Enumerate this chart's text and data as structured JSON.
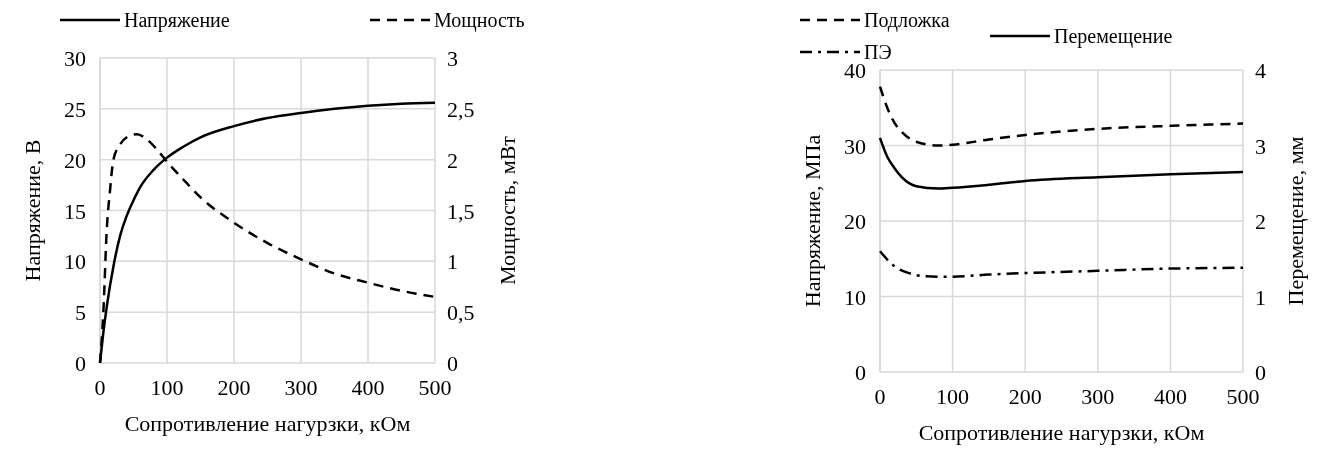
{
  "chart_data": [
    {
      "type": "line",
      "xlabel": "Сопротивление нагурзки, кОм",
      "ylabel": "Напряжение, В",
      "y2label": "Мощность, мВт",
      "xlim": [
        0,
        500
      ],
      "xticks": [
        0,
        100,
        200,
        300,
        400,
        500
      ],
      "ylim": [
        0,
        30
      ],
      "yticks": [
        0,
        5,
        10,
        15,
        20,
        25,
        30
      ],
      "y2lim": [
        0,
        3
      ],
      "y2ticks": [
        0,
        {
          "value": 0.5,
          "label": "0,5"
        },
        1,
        {
          "value": 1.5,
          "label": "1,5"
        },
        2,
        {
          "value": 2.5,
          "label": "2,5"
        },
        3
      ],
      "grid": true,
      "legend": "top",
      "series": [
        {
          "name": "Напряжение",
          "color": "#000000",
          "line_style": "solid",
          "x": [
            0,
            5,
            10,
            20,
            30,
            40,
            50,
            60,
            80,
            100,
            125,
            150,
            200,
            250,
            300,
            350,
            400,
            450,
            500
          ],
          "values": [
            0,
            3,
            5.5,
            9.5,
            12.5,
            14.5,
            16,
            17.3,
            19,
            20.2,
            21.3,
            22.2,
            23.3,
            24.1,
            24.6,
            25,
            25.3,
            25.5,
            25.6
          ]
        },
        {
          "name": "Мощность",
          "color": "#000000",
          "line_style": "dashed",
          "axis": "y2",
          "x": [
            0,
            5,
            10,
            15,
            20,
            30,
            40,
            55,
            70,
            85,
            100,
            125,
            150,
            200,
            250,
            300,
            350,
            400,
            450,
            500
          ],
          "values": [
            0,
            0.5,
            1.3,
            1.7,
            2.0,
            2.15,
            2.22,
            2.25,
            2.2,
            2.1,
            1.98,
            1.8,
            1.63,
            1.38,
            1.18,
            1.02,
            0.88,
            0.79,
            0.71,
            0.65
          ]
        }
      ]
    },
    {
      "type": "line",
      "xlabel": "Сопротивление нагурзки, кОм",
      "ylabel": "Напряжение, МПа",
      "y2label": "Перемещение, мм",
      "xlim": [
        0,
        500
      ],
      "xticks": [
        0,
        100,
        200,
        300,
        400,
        500
      ],
      "ylim": [
        0,
        40
      ],
      "yticks": [
        0,
        10,
        20,
        30,
        40
      ],
      "y2lim": [
        0,
        4
      ],
      "y2ticks": [
        0,
        1,
        2,
        3,
        4
      ],
      "grid": true,
      "legend": "top",
      "series": [
        {
          "name": "Подложка",
          "color": "#000000",
          "line_style": "dashed",
          "x": [
            0,
            10,
            20,
            30,
            50,
            80,
            100,
            150,
            200,
            300,
            400,
            500
          ],
          "values": [
            37.8,
            35,
            33,
            31.8,
            30.5,
            30,
            30.1,
            30.8,
            31.4,
            32.2,
            32.6,
            32.9
          ]
        },
        {
          "name": "ПЭ",
          "color": "#000000",
          "line_style": "dashdot",
          "x": [
            0,
            20,
            40,
            60,
            90,
            150,
            200,
            300,
            400,
            500
          ],
          "values": [
            16,
            14,
            13.1,
            12.7,
            12.6,
            12.9,
            13.1,
            13.4,
            13.7,
            13.8
          ]
        },
        {
          "name": "Перемещение",
          "color": "#000000",
          "line_style": "solid",
          "axis": "y2",
          "x": [
            0,
            10,
            20,
            30,
            50,
            80,
            100,
            150,
            200,
            300,
            400,
            500
          ],
          "values": [
            3.1,
            2.85,
            2.7,
            2.58,
            2.46,
            2.43,
            2.44,
            2.48,
            2.53,
            2.58,
            2.62,
            2.65
          ]
        }
      ]
    }
  ]
}
